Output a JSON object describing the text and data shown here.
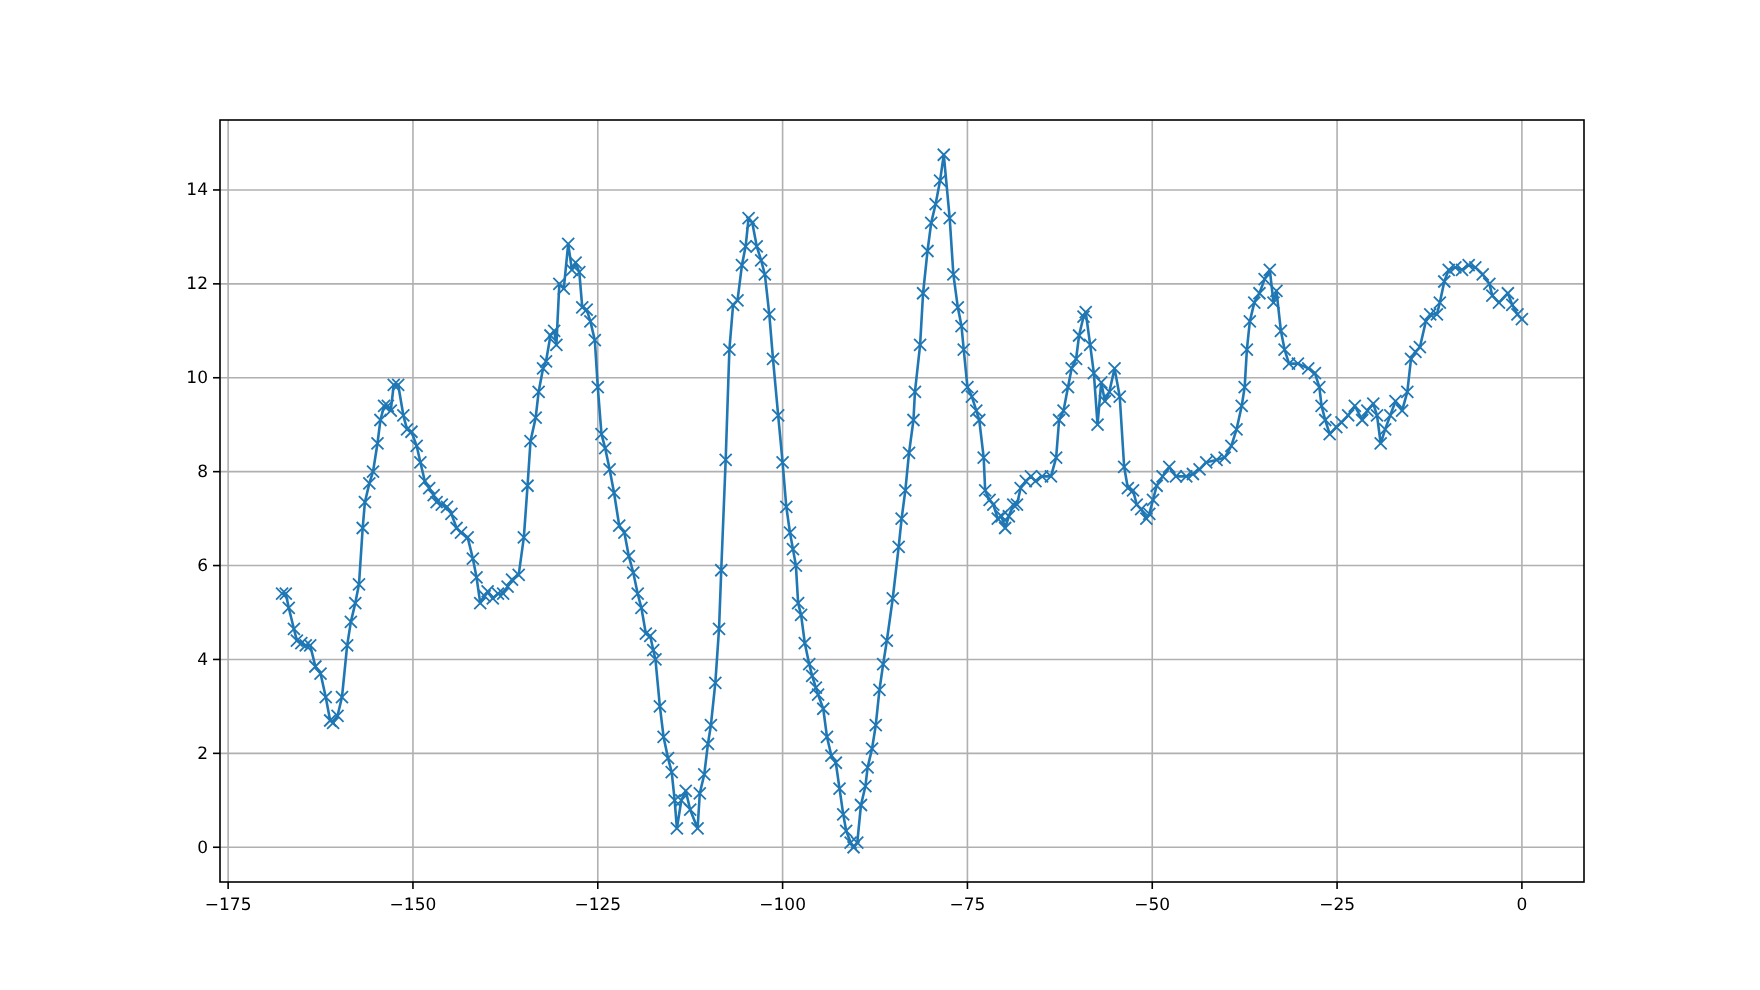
{
  "chart_data": {
    "type": "line",
    "marker": "cross",
    "line_style": "solid",
    "grid": true,
    "xlim": [
      -176.1,
      8.4
    ],
    "ylim": [
      -0.74,
      15.49
    ],
    "xticks": [
      -175,
      -150,
      -125,
      -100,
      -75,
      -50,
      -25,
      0
    ],
    "yticks": [
      0,
      2,
      4,
      6,
      8,
      10,
      12,
      14
    ],
    "series": [
      {
        "color": "#1f77b4",
        "x": [
          -167.7,
          -167.2,
          -166.8,
          -166.1,
          -165.7,
          -165.1,
          -164.5,
          -163.9,
          -163.2,
          -162.5,
          -161.8,
          -161.2,
          -160.8,
          -160.2,
          -159.6,
          -158.9,
          -158.4,
          -157.8,
          -157.3,
          -156.8,
          -156.5,
          -155.9,
          -155.4,
          -154.8,
          -154.4,
          -153.9,
          -153.4,
          -153.0,
          -152.6,
          -152.0,
          -151.3,
          -150.8,
          -150.2,
          -149.5,
          -149.0,
          -148.4,
          -147.8,
          -147.2,
          -146.8,
          -146.1,
          -145.4,
          -144.8,
          -144.1,
          -143.5,
          -142.6,
          -141.9,
          -141.4,
          -140.9,
          -140.3,
          -139.9,
          -139.2,
          -138.5,
          -137.8,
          -137.2,
          -136.6,
          -135.7,
          -135.0,
          -134.5,
          -134.1,
          -133.4,
          -133.0,
          -132.4,
          -132.0,
          -131.4,
          -130.9,
          -130.6,
          -130.2,
          -129.6,
          -129.0,
          -128.5,
          -128.0,
          -127.5,
          -127.1,
          -126.5,
          -126.0,
          -125.4,
          -125.0,
          -124.5,
          -124.0,
          -123.4,
          -122.8,
          -122.1,
          -121.4,
          -120.8,
          -120.2,
          -119.6,
          -119.1,
          -118.5,
          -117.9,
          -117.5,
          -117.2,
          -116.6,
          -116.1,
          -115.5,
          -115.0,
          -114.6,
          -114.3,
          -113.7,
          -113.1,
          -112.5,
          -111.5,
          -111.2,
          -110.6,
          -110.1,
          -109.7,
          -109.1,
          -108.6,
          -108.3,
          -107.7,
          -107.2,
          -106.7,
          -106.1,
          -105.5,
          -105.0,
          -104.6,
          -104.1,
          -103.5,
          -102.9,
          -102.4,
          -101.8,
          -101.3,
          -100.6,
          -100.0,
          -99.5,
          -99.0,
          -98.6,
          -98.2,
          -97.9,
          -97.5,
          -97.0,
          -96.4,
          -96.0,
          -95.5,
          -95.2,
          -94.5,
          -94.0,
          -93.4,
          -92.8,
          -92.3,
          -91.8,
          -91.4,
          -90.8,
          -90.4,
          -89.9,
          -89.4,
          -88.8,
          -88.5,
          -87.9,
          -87.4,
          -86.9,
          -86.4,
          -85.9,
          -85.1,
          -84.3,
          -83.9,
          -83.4,
          -82.9,
          -82.3,
          -82.1,
          -81.4,
          -81.0,
          -80.4,
          -79.9,
          -79.3,
          -78.7,
          -78.2,
          -77.4,
          -76.9,
          -76.3,
          -75.8,
          -75.5,
          -75.0,
          -74.4,
          -73.8,
          -73.4,
          -72.8,
          -72.6,
          -72.0,
          -71.5,
          -70.9,
          -70.4,
          -69.9,
          -69.4,
          -68.8,
          -68.3,
          -67.8,
          -67.1,
          -66.4,
          -65.8,
          -64.9,
          -63.7,
          -63.0,
          -62.6,
          -62.0,
          -61.4,
          -60.9,
          -60.3,
          -59.9,
          -59.3,
          -59.0,
          -58.4,
          -57.9,
          -57.4,
          -56.9,
          -56.4,
          -55.8,
          -55.1,
          -54.4,
          -53.8,
          -53.3,
          -52.6,
          -52.1,
          -51.5,
          -50.8,
          -50.4,
          -49.9,
          -49.4,
          -48.6,
          -47.7,
          -46.8,
          -45.4,
          -44.5,
          -43.6,
          -42.7,
          -41.3,
          -40.2,
          -39.3,
          -38.6,
          -37.9,
          -37.5,
          -37.2,
          -36.8,
          -36.2,
          -35.5,
          -34.8,
          -34.1,
          -33.6,
          -33.2,
          -32.6,
          -32.1,
          -31.5,
          -30.3,
          -28.9,
          -28.0,
          -27.4,
          -27.1,
          -26.6,
          -26.0,
          -25.1,
          -24.4,
          -23.5,
          -22.6,
          -21.6,
          -20.9,
          -20.1,
          -19.6,
          -19.1,
          -18.5,
          -17.8,
          -17.1,
          -16.2,
          -15.5,
          -15.0,
          -14.4,
          -13.8,
          -13.0,
          -12.4,
          -11.5,
          -11.1,
          -10.5,
          -9.9,
          -9.0,
          -8.1,
          -7.2,
          -6.3,
          -5.3,
          -4.4,
          -4.0,
          -3.1,
          -1.9,
          -1.3,
          -0.6,
          0.0
        ],
        "values": [
          5.4,
          5.4,
          5.1,
          4.65,
          4.4,
          4.35,
          4.3,
          4.3,
          3.85,
          3.7,
          3.2,
          2.7,
          2.65,
          2.8,
          3.2,
          4.3,
          4.8,
          5.2,
          5.6,
          6.8,
          7.35,
          7.75,
          8.0,
          8.6,
          9.1,
          9.4,
          9.4,
          9.3,
          9.85,
          9.85,
          9.2,
          8.9,
          8.85,
          8.55,
          8.2,
          7.8,
          7.65,
          7.5,
          7.35,
          7.3,
          7.25,
          7.1,
          6.8,
          6.7,
          6.6,
          6.15,
          5.75,
          5.2,
          5.35,
          5.45,
          5.3,
          5.4,
          5.4,
          5.55,
          5.7,
          5.8,
          6.6,
          7.7,
          8.65,
          9.15,
          9.7,
          10.2,
          10.35,
          10.9,
          11.0,
          10.7,
          12.0,
          11.9,
          12.85,
          12.3,
          12.45,
          12.25,
          11.5,
          11.45,
          11.2,
          10.8,
          9.8,
          8.8,
          8.5,
          8.05,
          7.55,
          6.85,
          6.7,
          6.2,
          5.85,
          5.4,
          5.1,
          4.55,
          4.5,
          4.2,
          4.0,
          3.0,
          2.35,
          1.9,
          1.6,
          1.0,
          0.4,
          1.0,
          1.2,
          0.8,
          0.4,
          1.15,
          1.55,
          2.2,
          2.6,
          3.5,
          4.65,
          5.9,
          8.25,
          10.6,
          11.55,
          11.65,
          12.4,
          12.8,
          13.4,
          13.3,
          12.8,
          12.5,
          12.2,
          11.35,
          10.4,
          9.2,
          8.2,
          7.25,
          6.7,
          6.35,
          6.0,
          5.2,
          4.95,
          4.35,
          3.9,
          3.65,
          3.4,
          3.25,
          2.95,
          2.35,
          1.95,
          1.8,
          1.25,
          0.7,
          0.35,
          0.1,
          0.0,
          0.1,
          0.9,
          1.3,
          1.7,
          2.1,
          2.6,
          3.35,
          3.9,
          4.4,
          5.3,
          6.4,
          7.0,
          7.6,
          8.4,
          9.1,
          9.7,
          10.7,
          11.8,
          12.7,
          13.3,
          13.7,
          14.2,
          14.75,
          13.4,
          12.2,
          11.5,
          11.1,
          10.6,
          9.8,
          9.6,
          9.3,
          9.1,
          8.3,
          7.6,
          7.4,
          7.3,
          7.0,
          7.05,
          6.8,
          7.05,
          7.3,
          7.3,
          7.65,
          7.8,
          7.9,
          7.8,
          7.9,
          7.9,
          8.3,
          9.1,
          9.3,
          9.8,
          10.2,
          10.4,
          10.9,
          11.3,
          11.4,
          10.7,
          10.1,
          9.0,
          9.9,
          9.5,
          9.7,
          10.2,
          9.6,
          8.1,
          7.65,
          7.6,
          7.3,
          7.2,
          7.0,
          7.1,
          7.4,
          7.7,
          7.9,
          8.1,
          7.9,
          7.9,
          7.95,
          8.05,
          8.2,
          8.25,
          8.3,
          8.55,
          8.9,
          9.4,
          9.8,
          10.6,
          11.2,
          11.6,
          11.8,
          12.1,
          12.3,
          11.6,
          11.85,
          11.0,
          10.6,
          10.3,
          10.3,
          10.2,
          10.1,
          9.8,
          9.4,
          9.1,
          8.8,
          8.95,
          9.05,
          9.2,
          9.4,
          9.1,
          9.3,
          9.45,
          9.2,
          8.6,
          8.9,
          9.2,
          9.5,
          9.3,
          9.7,
          10.4,
          10.55,
          10.65,
          11.2,
          11.35,
          11.35,
          11.6,
          12.05,
          12.3,
          12.35,
          12.3,
          12.4,
          12.35,
          12.2,
          12.0,
          11.75,
          11.6,
          11.8,
          11.55,
          11.35,
          11.25
        ]
      }
    ]
  }
}
